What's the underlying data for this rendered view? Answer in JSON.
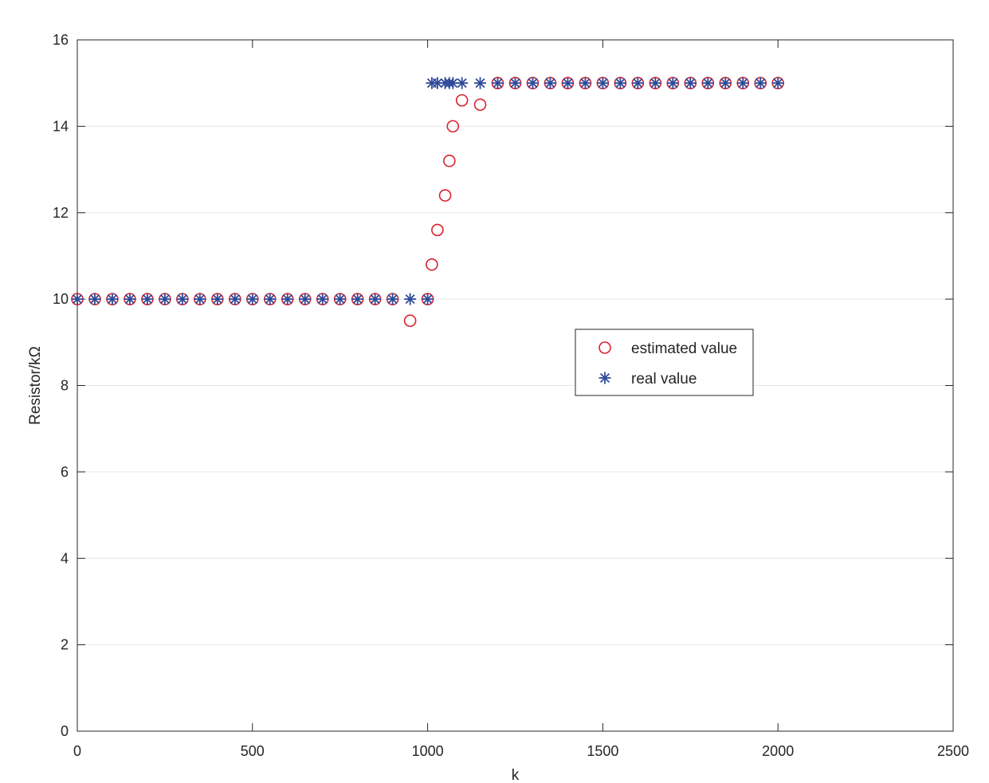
{
  "chart_data": {
    "type": "scatter",
    "xlabel": "k",
    "ylabel": "Resistor/kΩ",
    "xlim": [
      0,
      2500
    ],
    "ylim": [
      0,
      16
    ],
    "x_ticks": [
      "0",
      "500",
      "1000",
      "1500",
      "2000",
      "2500"
    ],
    "y_ticks": [
      "0",
      "2",
      "4",
      "6",
      "8",
      "10",
      "12",
      "14",
      "16"
    ],
    "grid": "horizontal",
    "legend_position": "center-right",
    "series": [
      {
        "name": "estimated value",
        "marker": "circle",
        "color": "#d9232e",
        "points": [
          [
            0,
            10
          ],
          [
            50,
            10
          ],
          [
            100,
            10
          ],
          [
            150,
            10
          ],
          [
            200,
            10
          ],
          [
            250,
            10
          ],
          [
            300,
            10
          ],
          [
            350,
            10
          ],
          [
            400,
            10
          ],
          [
            450,
            10
          ],
          [
            500,
            10
          ],
          [
            550,
            10
          ],
          [
            600,
            10
          ],
          [
            650,
            10
          ],
          [
            700,
            10
          ],
          [
            750,
            10
          ],
          [
            800,
            10
          ],
          [
            850,
            10
          ],
          [
            900,
            10
          ],
          [
            950,
            9.5
          ],
          [
            1000,
            10
          ],
          [
            1012,
            10.8
          ],
          [
            1028,
            11.6
          ],
          [
            1050,
            12.4
          ],
          [
            1062,
            13.2
          ],
          [
            1072,
            14.0
          ],
          [
            1098,
            14.6
          ],
          [
            1150,
            14.5
          ],
          [
            1200,
            15
          ],
          [
            1250,
            15
          ],
          [
            1300,
            15
          ],
          [
            1350,
            15
          ],
          [
            1400,
            15
          ],
          [
            1450,
            15
          ],
          [
            1500,
            15
          ],
          [
            1550,
            15
          ],
          [
            1600,
            15
          ],
          [
            1650,
            15
          ],
          [
            1700,
            15
          ],
          [
            1750,
            15
          ],
          [
            1800,
            15
          ],
          [
            1850,
            15
          ],
          [
            1900,
            15
          ],
          [
            1950,
            15
          ],
          [
            2000,
            15
          ]
        ]
      },
      {
        "name": "real value",
        "marker": "star",
        "color": "#2e4a99",
        "points": [
          [
            0,
            10
          ],
          [
            50,
            10
          ],
          [
            100,
            10
          ],
          [
            150,
            10
          ],
          [
            200,
            10
          ],
          [
            250,
            10
          ],
          [
            300,
            10
          ],
          [
            350,
            10
          ],
          [
            400,
            10
          ],
          [
            450,
            10
          ],
          [
            500,
            10
          ],
          [
            550,
            10
          ],
          [
            600,
            10
          ],
          [
            650,
            10
          ],
          [
            700,
            10
          ],
          [
            750,
            10
          ],
          [
            800,
            10
          ],
          [
            850,
            10
          ],
          [
            900,
            10
          ],
          [
            950,
            10
          ],
          [
            1000,
            10
          ],
          [
            1012,
            15
          ],
          [
            1028,
            15
          ],
          [
            1050,
            15
          ],
          [
            1062,
            15
          ],
          [
            1072,
            15
          ],
          [
            1098,
            15
          ],
          [
            1150,
            15
          ],
          [
            1200,
            15
          ],
          [
            1250,
            15
          ],
          [
            1300,
            15
          ],
          [
            1350,
            15
          ],
          [
            1400,
            15
          ],
          [
            1450,
            15
          ],
          [
            1500,
            15
          ],
          [
            1550,
            15
          ],
          [
            1600,
            15
          ],
          [
            1650,
            15
          ],
          [
            1700,
            15
          ],
          [
            1750,
            15
          ],
          [
            1800,
            15
          ],
          [
            1850,
            15
          ],
          [
            1900,
            15
          ],
          [
            1950,
            15
          ],
          [
            2000,
            15
          ]
        ]
      }
    ]
  }
}
